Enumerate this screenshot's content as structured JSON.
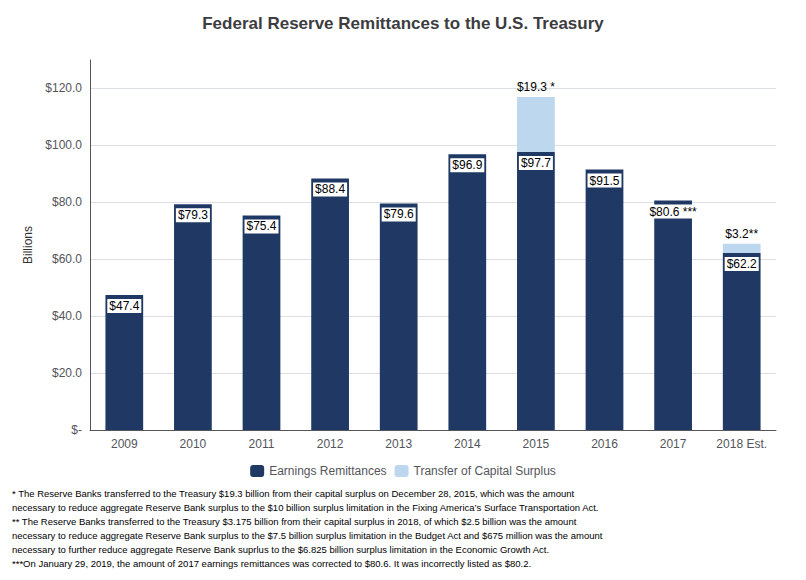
{
  "chart_data": {
    "type": "bar",
    "title": "Federal Reserve Remittances to the U.S. Treasury",
    "ylabel": "Billions",
    "categories": [
      "2009",
      "2010",
      "2011",
      "2012",
      "2013",
      "2014",
      "2015",
      "2016",
      "2017",
      "2018 Est."
    ],
    "stacked": true,
    "data_labels": true,
    "series": [
      {
        "name": "Earnings Remittances",
        "color": "#1F3864",
        "values": [
          47.4,
          79.3,
          75.4,
          88.4,
          79.6,
          96.9,
          97.7,
          91.5,
          80.6,
          62.2
        ],
        "value_labels": [
          "$47.4",
          "$79.3",
          "$75.4",
          "$88.4",
          "$79.6",
          "$96.9",
          "$97.7",
          "$91.5",
          "$80.6 ***",
          "$62.2"
        ]
      },
      {
        "name": "Transfer of Capital Surplus",
        "color": "#BDD7EE",
        "values": [
          0,
          0,
          0,
          0,
          0,
          0,
          19.3,
          0,
          0,
          3.2
        ],
        "value_labels": [
          null,
          null,
          null,
          null,
          null,
          null,
          "$19.3 *",
          null,
          null,
          "$3.2**"
        ]
      }
    ],
    "ylim": [
      0,
      130
    ],
    "yticks": [
      {
        "value": 0,
        "label": "$-"
      },
      {
        "value": 20,
        "label": "$20.0"
      },
      {
        "value": 40,
        "label": "$40.0"
      },
      {
        "value": 60,
        "label": "$60.0"
      },
      {
        "value": 80,
        "label": "$80.0"
      },
      {
        "value": 100,
        "label": "$100.0"
      },
      {
        "value": 120,
        "label": "$120.0"
      }
    ],
    "grid": true,
    "legend": "bottom",
    "annotations": [
      "* The Reserve Banks transferred to the Treasury $19.3 billion from their capital surplus on December 28, 2015, which was the amount",
      "necessary to reduce aggregate Reserve Bank surplus to the $10 billion surplus limitation in the Fixing America’s Surface Transportation Act.",
      "** The Reserve Banks transferred to the Treasury $3.175 billion from their capital surplus in 2018, of which $2.5 billion was the amount",
      "necessary to reduce aggregate Reserve Bank surplus to the $7.5 billion surplus limitation in the Budget Act and $675 million was the amount",
      "necessary to further reduce aggregate Reserve Bank suprlus to the $6.825 billion surplus limitation in the Economic Growth Act.",
      "***On January 29, 2019, the amount of 2017 earnings remittances was corrected to $80.6. It was incorrectly listed as $80.2."
    ]
  }
}
